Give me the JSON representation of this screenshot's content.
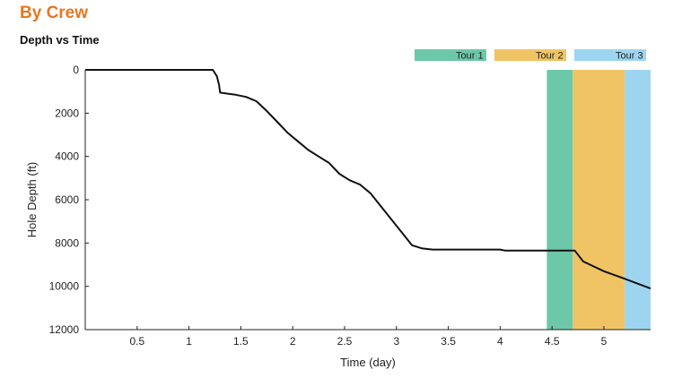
{
  "page": {
    "heading": "By Crew",
    "heading_color": "#e87722"
  },
  "chart_data": {
    "type": "line",
    "title": "Depth vs Time",
    "xlabel": "Time (day)",
    "ylabel": "Hole Depth (ft)",
    "xlim": [
      0,
      5.45
    ],
    "ylim": [
      0,
      12000
    ],
    "y_inverted": true,
    "x_ticks": [
      0.5,
      1,
      1.5,
      2,
      2.5,
      3,
      3.5,
      4,
      4.5,
      5
    ],
    "x_tick_labels": [
      "0.5",
      "1",
      "1.5",
      "2",
      "2.5",
      "3",
      "3.5",
      "4",
      "4.5",
      "5"
    ],
    "y_ticks": [
      0,
      2000,
      4000,
      6000,
      8000,
      10000,
      12000
    ],
    "y_tick_labels": [
      "0",
      "2000",
      "4000",
      "6000",
      "8000",
      "10000",
      "12000"
    ],
    "grid": false,
    "legend_position": "top-right",
    "series": [
      {
        "color": "#111111",
        "x": [
          0,
          1.23,
          1.27,
          1.29,
          1.3,
          1.45,
          1.55,
          1.65,
          1.75,
          1.85,
          1.95,
          2.05,
          2.15,
          2.25,
          2.35,
          2.45,
          2.55,
          2.65,
          2.75,
          2.85,
          2.95,
          3.05,
          3.15,
          3.25,
          3.35,
          3.5,
          4.0,
          4.05,
          4.3,
          4.6,
          4.72,
          4.8,
          5.0,
          5.2,
          5.45
        ],
        "y": [
          0,
          0,
          300,
          700,
          1050,
          1150,
          1250,
          1450,
          1900,
          2400,
          2900,
          3300,
          3700,
          4000,
          4300,
          4800,
          5100,
          5300,
          5700,
          6300,
          6900,
          7500,
          8100,
          8250,
          8300,
          8300,
          8300,
          8350,
          8350,
          8350,
          8350,
          8850,
          9300,
          9650,
          10100
        ]
      }
    ],
    "bands": [
      {
        "name": "Tour 1",
        "x0": 4.45,
        "x1": 4.7,
        "color": "#6cc8a8"
      },
      {
        "name": "Tour 2",
        "x0": 4.7,
        "x1": 5.2,
        "color": "#f0c465"
      },
      {
        "name": "Tour 3",
        "x0": 5.2,
        "x1": 5.45,
        "color": "#9dd5f0"
      }
    ]
  }
}
